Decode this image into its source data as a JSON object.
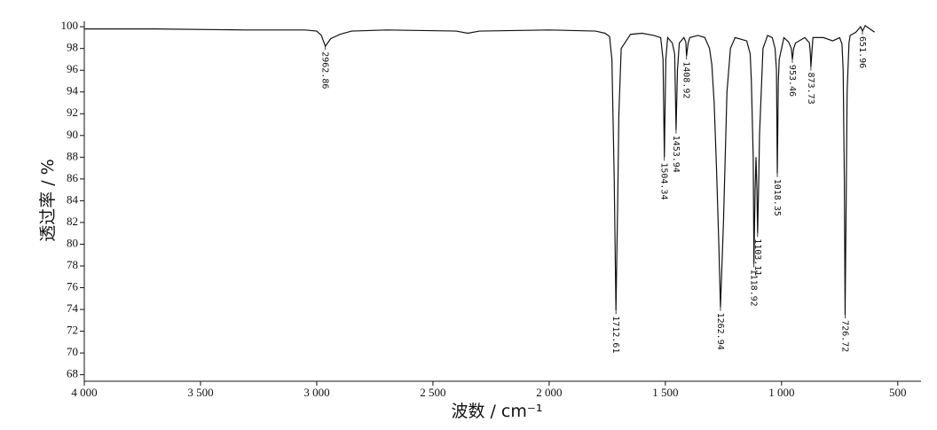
{
  "chart_data": {
    "type": "line",
    "xlabel": "波数 / cm⁻¹",
    "ylabel": "透过率 / %",
    "color": "#111111",
    "x": [
      4000,
      3700,
      3300,
      3050,
      3000,
      2980,
      2962.86,
      2940,
      2900,
      2850,
      2700,
      2400,
      2350,
      2300,
      2000,
      1800,
      1760,
      1740,
      1730,
      1720,
      1712.61,
      1705,
      1700,
      1690,
      1650,
      1600,
      1550,
      1520,
      1510,
      1504.34,
      1498,
      1490,
      1470,
      1460,
      1453.94,
      1448,
      1440,
      1420,
      1412,
      1408.92,
      1402,
      1395,
      1360,
      1330,
      1310,
      1300,
      1290,
      1280,
      1270,
      1262.94,
      1255,
      1250,
      1240,
      1235,
      1220,
      1200,
      1150,
      1135,
      1130,
      1122,
      1118.92,
      1114,
      1110,
      1106,
      1103.11,
      1098,
      1095,
      1080,
      1060,
      1040,
      1028,
      1022,
      1018.35,
      1014,
      1010,
      990,
      970,
      958,
      953.46,
      948,
      940,
      900,
      880,
      876,
      873.73,
      870,
      865,
      820,
      780,
      750,
      740,
      735,
      730,
      726.72,
      722,
      718,
      710,
      705,
      680,
      660,
      651.96,
      640,
      620,
      600
    ],
    "values": [
      99.8,
      99.8,
      99.7,
      99.7,
      99.6,
      99.2,
      98.2,
      98.9,
      99.3,
      99.6,
      99.7,
      99.6,
      99.4,
      99.6,
      99.7,
      99.6,
      99.4,
      99.1,
      97,
      86,
      73.9,
      84,
      92,
      98,
      99.3,
      99.4,
      99.2,
      99,
      97,
      88,
      97,
      99,
      98.5,
      97.5,
      90.5,
      96,
      98.5,
      99,
      98.6,
      97.3,
      98.5,
      99,
      99.2,
      99,
      98,
      96.5,
      93,
      87,
      80,
      74.2,
      79,
      82,
      90,
      94,
      98,
      99,
      98.7,
      97.5,
      95,
      88,
      78.2,
      85,
      88,
      85,
      81,
      86,
      90,
      98,
      99.2,
      99,
      98,
      96,
      86.5,
      95,
      97,
      99,
      98.6,
      98,
      97,
      98,
      98.5,
      99,
      98.5,
      97.5,
      96.3,
      97.5,
      99,
      99,
      98.7,
      99,
      98.4,
      96,
      86,
      73.5,
      84,
      94,
      98.5,
      99.2,
      99.5,
      100,
      99.6,
      100.1,
      99.8,
      99.5
    ],
    "peaks": [
      2962.86,
      1712.61,
      1504.34,
      1453.94,
      1408.92,
      1262.94,
      1118.92,
      1103.11,
      1018.35,
      953.46,
      873.73,
      726.72,
      651.96
    ],
    "xlim": [
      4000,
      400
    ],
    "xticks": [
      {
        "value": 4000,
        "label": "4 000"
      },
      {
        "value": 3500,
        "label": "3 500"
      },
      {
        "value": 3000,
        "label": "3 000"
      },
      {
        "value": 2500,
        "label": "2 500"
      },
      {
        "value": 2000,
        "label": "2 000"
      },
      {
        "value": 1500,
        "label": "1 500"
      },
      {
        "value": 1000,
        "label": "1 000"
      },
      500
    ],
    "ylim": [
      67.4,
      100.5
    ],
    "yticks": [
      68,
      70,
      72,
      74,
      76,
      78,
      80,
      82,
      84,
      86,
      88,
      90,
      92,
      94,
      96,
      98,
      100
    ]
  }
}
